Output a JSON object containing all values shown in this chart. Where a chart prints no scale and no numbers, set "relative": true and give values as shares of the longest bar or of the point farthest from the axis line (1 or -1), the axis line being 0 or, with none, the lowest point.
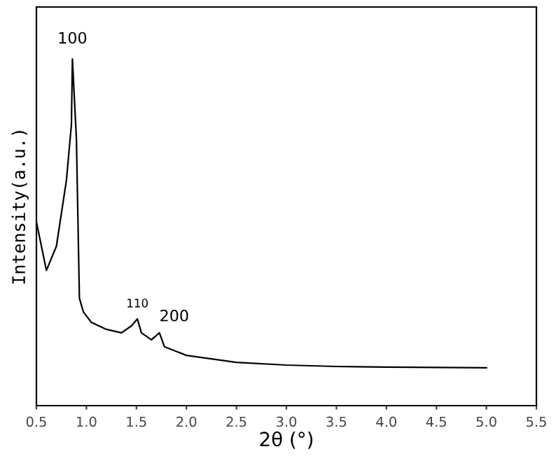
{
  "chart_data": {
    "type": "line",
    "xlabel": "2θ (°)",
    "ylabel": "Intensity(a.u.)",
    "relative": true,
    "x": [
      0.5,
      0.6,
      0.7,
      0.8,
      0.85,
      0.86,
      0.9,
      0.93,
      0.97,
      1.05,
      1.2,
      1.35,
      1.45,
      1.51,
      1.55,
      1.65,
      1.73,
      1.78,
      2.0,
      2.5,
      3.0,
      3.5,
      4.0,
      5.0
    ],
    "series": [
      {
        "color": "#000000",
        "values": [
          0.53,
          0.39,
          0.46,
          0.65,
          0.81,
          1.0,
          0.77,
          0.31,
          0.27,
          0.24,
          0.22,
          0.21,
          0.23,
          0.25,
          0.21,
          0.19,
          0.21,
          0.17,
          0.145,
          0.125,
          0.117,
          0.113,
          0.111,
          0.109
        ]
      }
    ],
    "xlim": [
      0.5,
      5.5
    ],
    "xticks": [
      {
        "value": 0.5,
        "label": "0.5"
      },
      {
        "value": 1.0,
        "label": "1.0"
      },
      {
        "value": 1.5,
        "label": "1.5"
      },
      {
        "value": 2.0,
        "label": "2.0"
      },
      {
        "value": 2.5,
        "label": "2.5"
      },
      {
        "value": 3.0,
        "label": "3.0"
      },
      {
        "value": 3.5,
        "label": "3.5"
      },
      {
        "value": 4.0,
        "label": "4.0"
      },
      {
        "value": 4.5,
        "label": "4.5"
      },
      {
        "value": 5.0,
        "label": "5.0"
      },
      {
        "value": 5.5,
        "label": "5.5"
      }
    ],
    "tick_labels": "x",
    "grid": false,
    "legend": false,
    "annotations": [
      {
        "text": "100",
        "x": 0.86,
        "y": 1.0
      },
      {
        "text": "110",
        "x": 1.51,
        "y": 0.25
      },
      {
        "text": "200",
        "x": 1.73,
        "y": 0.21
      }
    ]
  }
}
